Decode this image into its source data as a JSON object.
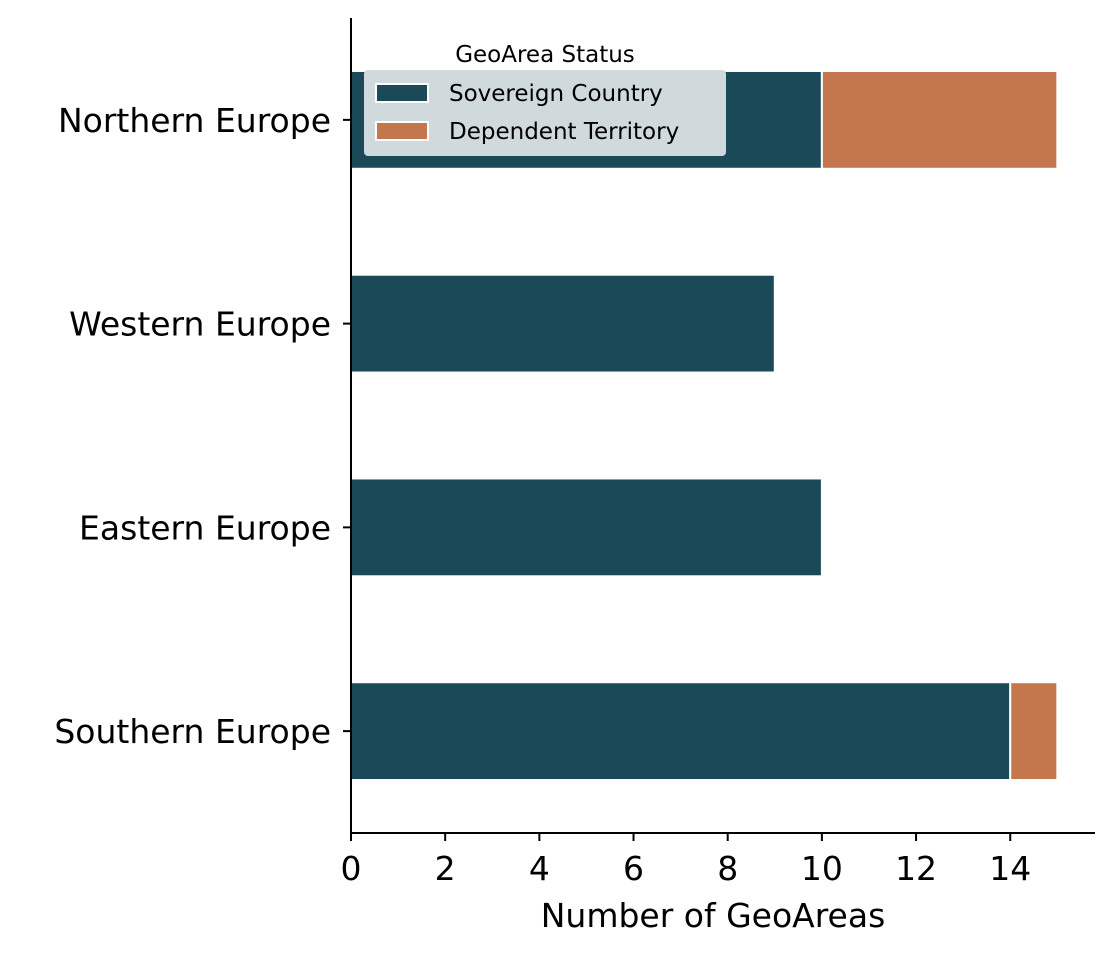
{
  "chart_data": {
    "type": "bar",
    "orientation": "horizontal",
    "stacked": true,
    "categories": [
      "Northern Europe",
      "Western Europe",
      "Eastern Europe",
      "Southern Europe"
    ],
    "series": [
      {
        "name": "Sovereign Country",
        "values": [
          10,
          9,
          10,
          14
        ],
        "color": "#1b4958"
      },
      {
        "name": "Dependent Territory",
        "values": [
          5,
          0,
          0,
          1
        ],
        "color": "#c4764d"
      }
    ],
    "xlabel": "Number of GeoAreas",
    "ylabel": "",
    "xlim": [
      0,
      15.8
    ],
    "xticks": [
      0,
      2,
      4,
      6,
      8,
      10,
      12,
      14
    ],
    "grid": false,
    "legend": {
      "title": "GeoArea Status",
      "placement": "top-left",
      "background": "#d0d9dc"
    }
  }
}
